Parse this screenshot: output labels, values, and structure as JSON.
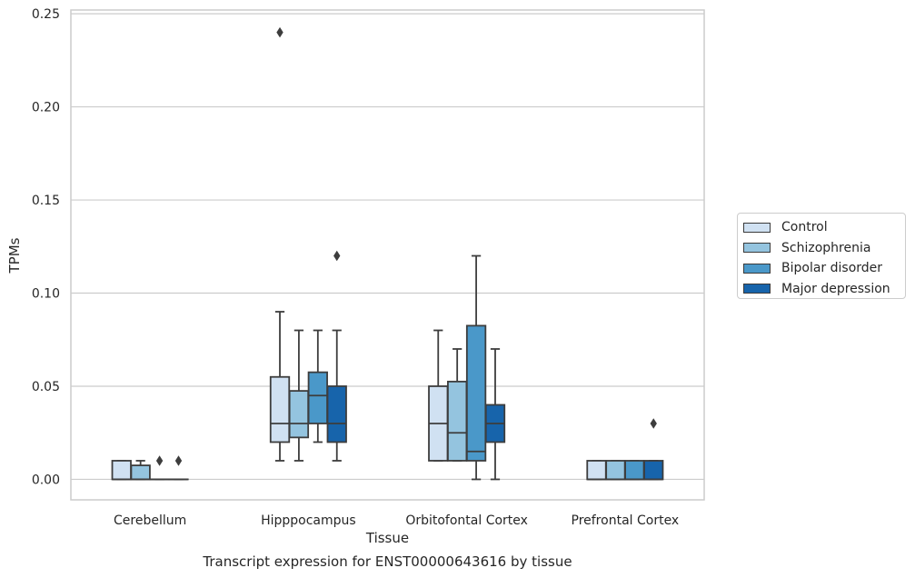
{
  "chart_data": {
    "type": "boxplot",
    "title": "Transcript expression for ENST00000643616 by tissue",
    "xlabel": "Tissue",
    "ylabel": "TPMs",
    "ylim": [
      -0.011,
      0.252
    ],
    "yticks": [
      "0.00",
      "0.05",
      "0.10",
      "0.15",
      "0.20",
      "0.25"
    ],
    "grid": "horizontal",
    "legend_position": "right",
    "categories": [
      "Cerebellum",
      "Hipppocampus",
      "Orbitofontal Cortex",
      "Prefrontal Cortex"
    ],
    "series": [
      {
        "name": "Control",
        "color": "#d0e1f2",
        "boxes": [
          {
            "whislo": 0.0,
            "q1": 0.0,
            "med": 0.0,
            "q3": 0.01,
            "whishi": 0.01,
            "fliers": []
          },
          {
            "whislo": 0.01,
            "q1": 0.02,
            "med": 0.03,
            "q3": 0.055,
            "whishi": 0.09,
            "fliers": [
              0.24
            ]
          },
          {
            "whislo": 0.01,
            "q1": 0.01,
            "med": 0.03,
            "q3": 0.05,
            "whishi": 0.08,
            "fliers": []
          },
          {
            "whislo": 0.0,
            "q1": 0.0,
            "med": 0.0,
            "q3": 0.01,
            "whishi": 0.01,
            "fliers": []
          }
        ]
      },
      {
        "name": "Schizophrenia",
        "color": "#94c4df",
        "boxes": [
          {
            "whislo": 0.0,
            "q1": 0.0,
            "med": 0.0,
            "q3": 0.0075,
            "whishi": 0.01,
            "fliers": []
          },
          {
            "whislo": 0.01,
            "q1": 0.0225,
            "med": 0.03,
            "q3": 0.0475,
            "whishi": 0.08,
            "fliers": []
          },
          {
            "whislo": 0.01,
            "q1": 0.01,
            "med": 0.025,
            "q3": 0.0525,
            "whishi": 0.07,
            "fliers": []
          },
          {
            "whislo": 0.0,
            "q1": 0.0,
            "med": 0.0,
            "q3": 0.01,
            "whishi": 0.01,
            "fliers": []
          }
        ]
      },
      {
        "name": "Bipolar disorder",
        "color": "#4a98c9",
        "boxes": [
          {
            "whislo": 0.0,
            "q1": 0.0,
            "med": 0.0,
            "q3": 0.0,
            "whishi": 0.0,
            "fliers": [
              0.01
            ]
          },
          {
            "whislo": 0.02,
            "q1": 0.03,
            "med": 0.045,
            "q3": 0.0575,
            "whishi": 0.08,
            "fliers": []
          },
          {
            "whislo": 0.0,
            "q1": 0.01,
            "med": 0.015,
            "q3": 0.0825,
            "whishi": 0.12,
            "fliers": []
          },
          {
            "whislo": 0.0,
            "q1": 0.0,
            "med": 0.0,
            "q3": 0.01,
            "whishi": 0.01,
            "fliers": []
          }
        ]
      },
      {
        "name": "Major depression",
        "color": "#1764ab",
        "boxes": [
          {
            "whislo": 0.0,
            "q1": 0.0,
            "med": 0.0,
            "q3": 0.0,
            "whishi": 0.0,
            "fliers": [
              0.01
            ]
          },
          {
            "whislo": 0.01,
            "q1": 0.02,
            "med": 0.03,
            "q3": 0.05,
            "whishi": 0.08,
            "fliers": [
              0.12
            ]
          },
          {
            "whislo": 0.0,
            "q1": 0.02,
            "med": 0.03,
            "q3": 0.04,
            "whishi": 0.07,
            "fliers": []
          },
          {
            "whislo": 0.0,
            "q1": 0.0,
            "med": 0.0,
            "q3": 0.01,
            "whishi": 0.01,
            "fliers": [
              0.03
            ]
          }
        ]
      }
    ]
  }
}
